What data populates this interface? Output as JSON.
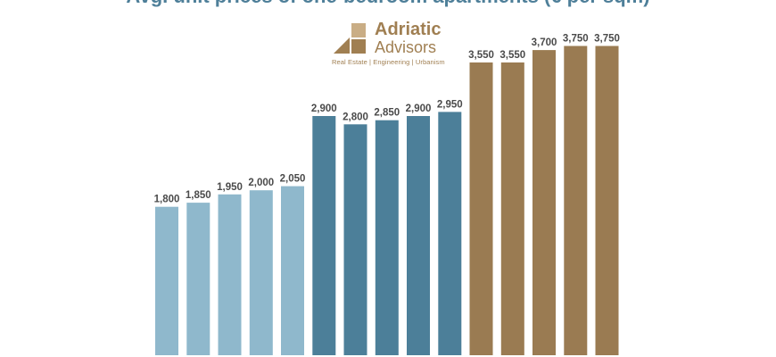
{
  "chart_data": {
    "type": "bar",
    "title": "Avg. unit prices of one-bedroom apartments (€ per sqm)",
    "series": [
      {
        "values": [
          1800,
          1850,
          1950,
          2000,
          2050
        ],
        "color": "#8fb8cc"
      },
      {
        "values": [
          2900,
          2800,
          2850,
          2900,
          2950
        ],
        "color": "#4c7f99"
      },
      {
        "values": [
          3550,
          3550,
          3700,
          3750,
          3750
        ],
        "color": "#9a7b52"
      }
    ],
    "value_labels": [
      "1,800",
      "1,850",
      "1,950",
      "2,000",
      "2,050",
      "2,900",
      "2,800",
      "2,850",
      "2,900",
      "2,950",
      "3,550",
      "3,550",
      "3,700",
      "3,750",
      "3,750"
    ],
    "grid": false
  },
  "logo": {
    "name_line1": "Adriatic",
    "name_line2": "Advisors",
    "tagline": "Real Estate | Engineering | Urbanism",
    "color": "#a07f52"
  }
}
